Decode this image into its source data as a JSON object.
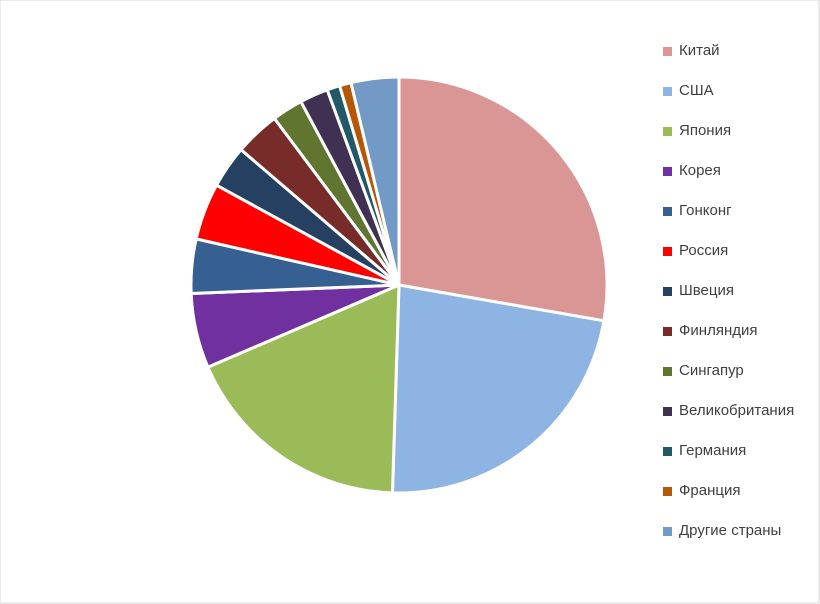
{
  "chart_data": {
    "type": "pie",
    "categories": [
      "Китай",
      "США",
      "Япония",
      "Корея",
      "Гонконг",
      "Россия",
      "Швеция",
      "Финляндия",
      "Сингапур",
      "Великобритания",
      "Германия",
      "Франция",
      "Другие страны"
    ],
    "values": [
      27.7,
      22.7,
      18,
      5.8,
      4.2,
      4.4,
      3.3,
      3.5,
      2.4,
      2.2,
      1,
      0.9,
      3.7
    ],
    "colors": [
      "#d99694",
      "#8eb4e3",
      "#9bbb59",
      "#7030a0",
      "#376092",
      "#ff0000",
      "#254061",
      "#772c2a",
      "#5f7530",
      "#403152",
      "#215968",
      "#b65708",
      "#7399c6"
    ],
    "legend": "right"
  }
}
